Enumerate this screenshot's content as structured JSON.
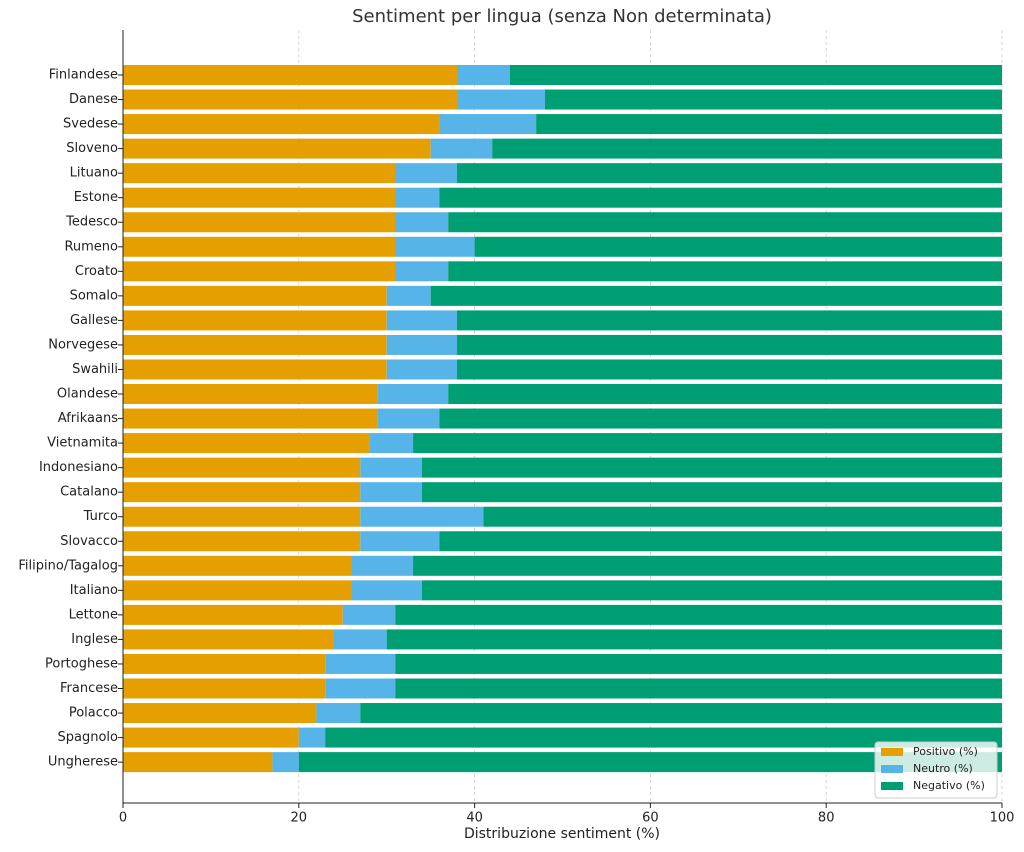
{
  "chart_data": {
    "type": "stacked-barh",
    "title": "Sentiment per lingua (senza Non determinata)",
    "x_label": "Distribuzione sentiment (%)",
    "categories": [
      "Finlandese",
      "Danese",
      "Svedese",
      "Sloveno",
      "Lituano",
      "Estone",
      "Tedesco",
      "Rumeno",
      "Croato",
      "Somalo",
      "Gallese",
      "Norvegese",
      "Swahili",
      "Olandese",
      "Afrikaans",
      "Vietnamita",
      "Indonesiano",
      "Catalano",
      "Turco",
      "Slovacco",
      "Filipino/Tagalog",
      "Italiano",
      "Lettone",
      "Inglese",
      "Portoghese",
      "Francese",
      "Polacco",
      "Spagnolo",
      "Ungherese"
    ],
    "series": [
      {
        "name": "Positivo (%)",
        "color": "#E69F00",
        "values": [
          38,
          38,
          36,
          35,
          31,
          31,
          31,
          31,
          31,
          30,
          30,
          30,
          30,
          29,
          29,
          28,
          27,
          27,
          27,
          27,
          26,
          26,
          25,
          24,
          23,
          23,
          22,
          20,
          17
        ]
      },
      {
        "name": "Neutro (%)",
        "color": "#56B4E9",
        "values": [
          6,
          10,
          11,
          7,
          7,
          5,
          6,
          9,
          6,
          5,
          8,
          8,
          8,
          8,
          7,
          5,
          7,
          7,
          14,
          9,
          7,
          8,
          6,
          6,
          8,
          8,
          5,
          3,
          3
        ]
      },
      {
        "name": "Negativo (%)",
        "color": "#009E73",
        "values": [
          56,
          52,
          53,
          58,
          62,
          64,
          63,
          60,
          63,
          65,
          62,
          62,
          62,
          63,
          64,
          67,
          66,
          66,
          59,
          64,
          67,
          66,
          69,
          70,
          69,
          69,
          73,
          77,
          80
        ]
      }
    ],
    "xlim": [
      0,
      100
    ],
    "xticks": [
      0,
      20,
      40,
      60,
      80,
      100
    ],
    "grid": true,
    "legend": "lower right"
  }
}
